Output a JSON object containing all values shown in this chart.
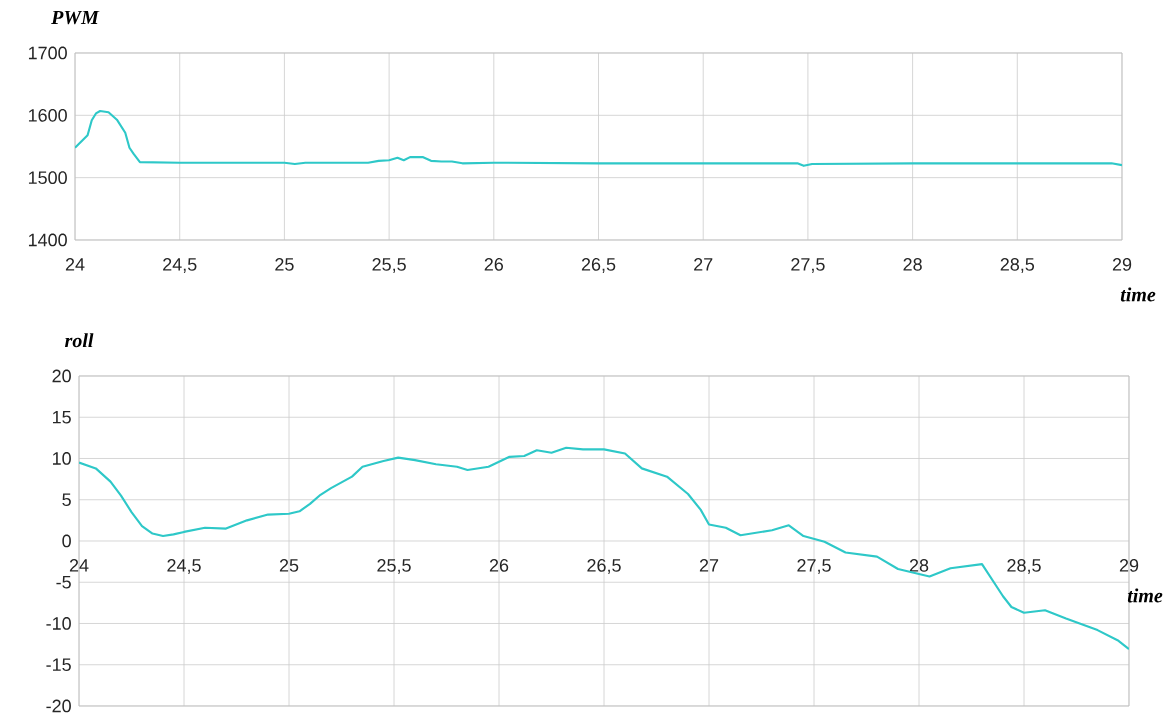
{
  "chart_data": [
    {
      "type": "line",
      "ylabel": "PWM",
      "xlabel": "time",
      "color": "#2ec8c8",
      "grid": true,
      "x": [
        24,
        24.03,
        24.06,
        24.08,
        24.1,
        24.12,
        24.16,
        24.2,
        24.24,
        24.26,
        24.28,
        24.31,
        24.5,
        25,
        25.05,
        25.1,
        25.4,
        25.45,
        25.5,
        25.54,
        25.57,
        25.6,
        25.66,
        25.7,
        25.75,
        25.8,
        25.85,
        26,
        26.5,
        27,
        27.45,
        27.48,
        27.52,
        28,
        28.5,
        28.95,
        29
      ],
      "values": [
        1548,
        1558,
        1568,
        1592,
        1603,
        1607,
        1605,
        1593,
        1572,
        1548,
        1538,
        1525,
        1524,
        1524,
        1522,
        1524,
        1524,
        1527,
        1528,
        1532,
        1528,
        1533,
        1533,
        1527,
        1526,
        1526,
        1523,
        1524,
        1523,
        1523,
        1523,
        1519,
        1522,
        1523,
        1523,
        1523,
        1520
      ],
      "xlim": [
        24,
        29
      ],
      "ylim": [
        1400,
        1700
      ],
      "xticks": [
        24,
        {
          "value": 24.5,
          "label": "24,5"
        },
        25,
        {
          "value": 25.5,
          "label": "25,5"
        },
        26,
        {
          "value": 26.5,
          "label": "26,5"
        },
        27,
        {
          "value": 27.5,
          "label": "27,5"
        },
        28,
        {
          "value": 28.5,
          "label": "28,5"
        },
        29
      ],
      "yticks": [
        1400,
        1500,
        1600,
        1700
      ]
    },
    {
      "type": "line",
      "ylabel": "roll",
      "xlabel": "time",
      "color": "#2ec8c8",
      "grid": true,
      "x": [
        24,
        24.08,
        24.15,
        24.2,
        24.25,
        24.3,
        24.35,
        24.4,
        24.45,
        24.5,
        24.6,
        24.7,
        24.8,
        24.9,
        25,
        25.05,
        25.1,
        25.15,
        25.2,
        25.3,
        25.35,
        25.45,
        25.52,
        25.6,
        25.7,
        25.8,
        25.85,
        25.95,
        26,
        26.05,
        26.12,
        26.18,
        26.25,
        26.32,
        26.4,
        26.5,
        26.6,
        26.68,
        26.8,
        26.9,
        26.96,
        27,
        27.08,
        27.15,
        27.3,
        27.38,
        27.45,
        27.55,
        27.65,
        27.8,
        27.9,
        28.05,
        28.15,
        28.3,
        28.4,
        28.44,
        28.5,
        28.6,
        28.7,
        28.85,
        28.95,
        29
      ],
      "values": [
        9.5,
        8.8,
        7.2,
        5.5,
        3.5,
        1.8,
        0.9,
        0.6,
        0.8,
        1.1,
        1.6,
        1.5,
        2.5,
        3.2,
        3.3,
        3.6,
        4.5,
        5.6,
        6.4,
        7.8,
        9.0,
        9.7,
        10.1,
        9.8,
        9.3,
        9.0,
        8.6,
        9.0,
        9.6,
        10.2,
        10.3,
        11.0,
        10.7,
        11.3,
        11.1,
        11.1,
        10.6,
        8.8,
        7.8,
        5.7,
        3.8,
        2.0,
        1.6,
        0.7,
        1.3,
        1.9,
        0.6,
        -0.1,
        -1.4,
        -1.9,
        -3.4,
        -4.3,
        -3.3,
        -2.8,
        -6.7,
        -8.0,
        -8.7,
        -8.4,
        -9.4,
        -10.8,
        -12.1,
        -13.1
      ],
      "xlim": [
        24,
        29
      ],
      "ylim": [
        -20,
        20
      ],
      "xticks": [
        24,
        {
          "value": 24.5,
          "label": "24,5"
        },
        25,
        {
          "value": 25.5,
          "label": "25,5"
        },
        26,
        {
          "value": 26.5,
          "label": "26,5"
        },
        27,
        {
          "value": 27.5,
          "label": "27,5"
        },
        28,
        {
          "value": 28.5,
          "label": "28,5"
        },
        29
      ],
      "yticks": [
        -20,
        -15,
        -10,
        -5,
        0,
        5,
        10,
        15,
        20
      ]
    }
  ]
}
